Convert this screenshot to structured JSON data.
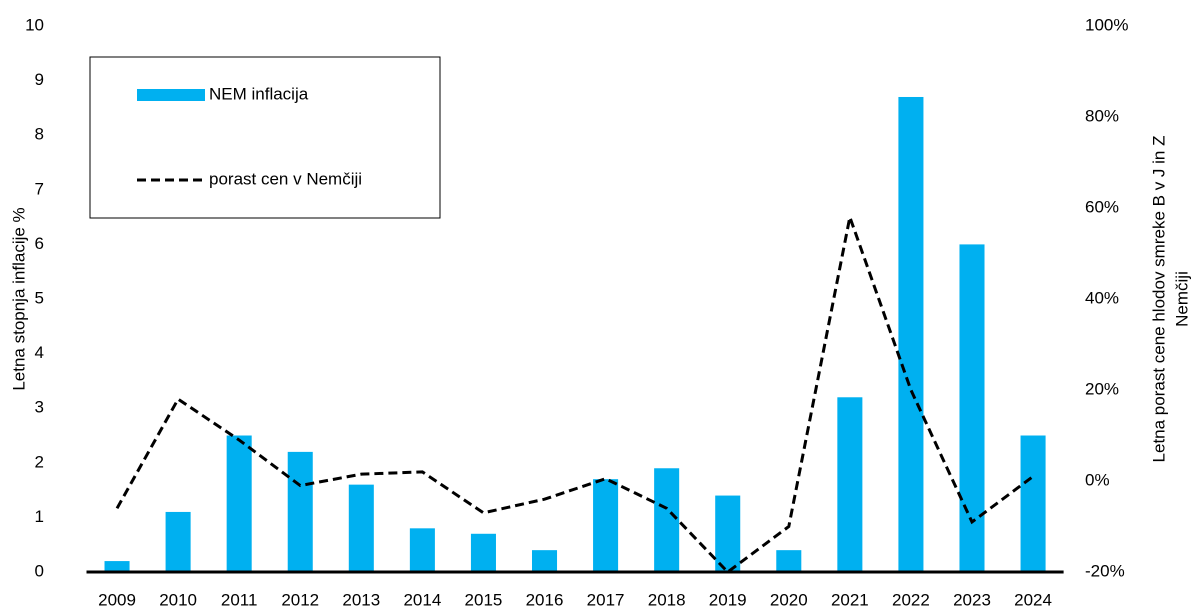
{
  "chart_data": {
    "type": "bar-line",
    "categories": [
      "2009",
      "2010",
      "2011",
      "2012",
      "2013",
      "2014",
      "2015",
      "2016",
      "2017",
      "2018",
      "2019",
      "2020",
      "2021",
      "2022",
      "2023",
      "2024"
    ],
    "series": [
      {
        "name": "NEM inflacija",
        "type": "bar",
        "color": "#00b0f0",
        "values": [
          0.2,
          1.1,
          2.5,
          2.2,
          1.6,
          0.8,
          0.7,
          0.4,
          1.7,
          1.9,
          1.4,
          0.4,
          3.2,
          8.7,
          6.0,
          2.5
        ]
      },
      {
        "name": "porast cen v Nemčiji",
        "type": "line",
        "axis": "y2",
        "color": "#000000",
        "dashed": true,
        "values": [
          -6,
          18,
          9,
          -1,
          1.5,
          2,
          -7,
          -4,
          0.5,
          -6,
          -20,
          -10,
          58,
          20,
          -9,
          1
        ]
      }
    ],
    "ylabel": "Letna stopnja inflacije %",
    "y2label": [
      "Letna porast cene hlodov  smreke B v J in Z",
      "Nemčiji"
    ],
    "ylim": [
      0,
      10
    ],
    "yticks": [
      0,
      1,
      2,
      3,
      4,
      5,
      6,
      7,
      8,
      9,
      10
    ],
    "y2lim": [
      -20,
      100
    ],
    "y2ticks": [
      {
        "value": -20,
        "label": "-20%"
      },
      {
        "value": 0,
        "label": "0%"
      },
      {
        "value": 20,
        "label": "20%"
      },
      {
        "value": 40,
        "label": "40%"
      },
      {
        "value": 60,
        "label": "60%"
      },
      {
        "value": 80,
        "label": "80%"
      },
      {
        "value": 100,
        "label": "100%"
      }
    ],
    "grid": false,
    "legend": "upper left"
  }
}
